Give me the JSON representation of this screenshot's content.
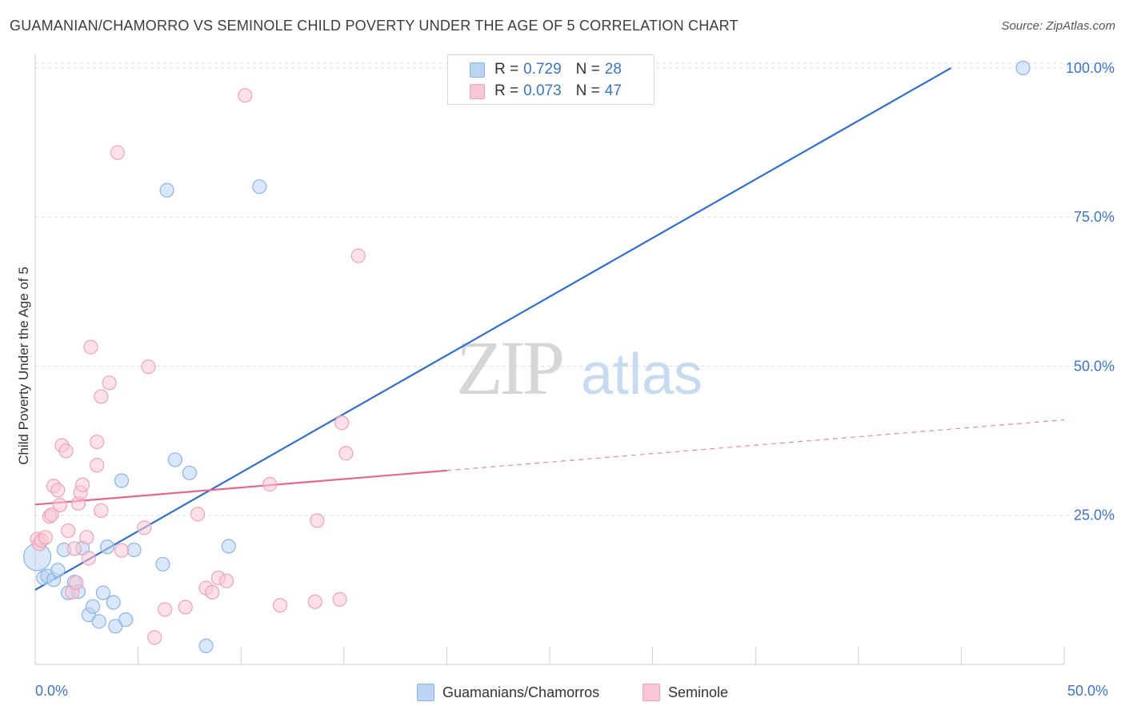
{
  "title": "GUAMANIAN/CHAMORRO VS SEMINOLE CHILD POVERTY UNDER THE AGE OF 5 CORRELATION CHART",
  "source_label": "Source: ZipAtlas.com",
  "watermark": {
    "zip": "ZIP",
    "atlas": "atlas"
  },
  "legend": {
    "rows": [
      {
        "r_label": "R =",
        "r_value": "0.729",
        "n_label": "N =",
        "n_value": "28"
      },
      {
        "r_label": "R =",
        "r_value": "0.073",
        "n_label": "N =",
        "n_value": "47"
      }
    ]
  },
  "chart_data": {
    "type": "scatter",
    "title": "GUAMANIAN/CHAMORRO VS SEMINOLE CHILD POVERTY UNDER THE AGE OF 5 CORRELATION CHART",
    "xlabel": "",
    "ylabel": "Child Poverty Under the Age of 5",
    "xlim": [
      0,
      50
    ],
    "ylim": [
      0,
      102
    ],
    "x_tick_labels": [
      "0.0%",
      "50.0%"
    ],
    "y_ticks": [
      25,
      50,
      75,
      100
    ],
    "y_tick_labels": [
      "25.0%",
      "50.0%",
      "75.0%",
      "100.0%"
    ],
    "grid": true,
    "legend_position": "top-center",
    "series": [
      {
        "name": "Guamanians/Chamorros",
        "color": "#8ab4e8",
        "fill": "#bcd4f4",
        "line_color": "#2f6fcf",
        "trend": {
          "x": [
            0,
            44.5
          ],
          "y": [
            12.5,
            100
          ]
        },
        "points": [
          {
            "x": 0.1,
            "y": 18.0,
            "big": true
          },
          {
            "x": 0.4,
            "y": 14.5
          },
          {
            "x": 0.6,
            "y": 14.8
          },
          {
            "x": 0.9,
            "y": 14.2
          },
          {
            "x": 1.1,
            "y": 15.8
          },
          {
            "x": 1.4,
            "y": 19.2
          },
          {
            "x": 1.6,
            "y": 12.0
          },
          {
            "x": 1.9,
            "y": 13.8
          },
          {
            "x": 2.1,
            "y": 12.2
          },
          {
            "x": 2.3,
            "y": 19.5
          },
          {
            "x": 2.6,
            "y": 8.3
          },
          {
            "x": 2.8,
            "y": 9.7
          },
          {
            "x": 3.1,
            "y": 7.2
          },
          {
            "x": 3.3,
            "y": 12.0
          },
          {
            "x": 3.5,
            "y": 19.7
          },
          {
            "x": 3.8,
            "y": 10.4
          },
          {
            "x": 3.9,
            "y": 6.4
          },
          {
            "x": 4.2,
            "y": 30.8
          },
          {
            "x": 4.4,
            "y": 7.5
          },
          {
            "x": 4.8,
            "y": 19.2
          },
          {
            "x": 6.2,
            "y": 16.8
          },
          {
            "x": 6.4,
            "y": 79.5
          },
          {
            "x": 6.8,
            "y": 34.3
          },
          {
            "x": 7.5,
            "y": 32.1
          },
          {
            "x": 8.3,
            "y": 3.1
          },
          {
            "x": 9.4,
            "y": 19.8
          },
          {
            "x": 10.9,
            "y": 80.1
          },
          {
            "x": 48.0,
            "y": 100.0
          }
        ]
      },
      {
        "name": "Seminole",
        "color": "#f0a0b8",
        "fill": "#f9c8d6",
        "line_color": "#e8668f",
        "trend": {
          "x": [
            0,
            20
          ],
          "y": [
            26.8,
            32.5
          ]
        },
        "trend_dashed": {
          "x": [
            20,
            50
          ],
          "y": [
            32.5,
            41.0
          ]
        },
        "points": [
          {
            "x": 0.1,
            "y": 21.0
          },
          {
            "x": 0.2,
            "y": 20.2
          },
          {
            "x": 0.3,
            "y": 20.8
          },
          {
            "x": 0.5,
            "y": 21.3
          },
          {
            "x": 0.7,
            "y": 24.8
          },
          {
            "x": 0.8,
            "y": 25.1
          },
          {
            "x": 0.9,
            "y": 29.9
          },
          {
            "x": 1.1,
            "y": 29.2
          },
          {
            "x": 1.2,
            "y": 26.7
          },
          {
            "x": 1.3,
            "y": 36.7
          },
          {
            "x": 1.5,
            "y": 35.8
          },
          {
            "x": 1.6,
            "y": 22.4
          },
          {
            "x": 1.8,
            "y": 12.1
          },
          {
            "x": 1.9,
            "y": 19.4
          },
          {
            "x": 2.0,
            "y": 13.7
          },
          {
            "x": 2.1,
            "y": 27.0
          },
          {
            "x": 2.2,
            "y": 28.8
          },
          {
            "x": 2.3,
            "y": 30.1
          },
          {
            "x": 2.5,
            "y": 21.3
          },
          {
            "x": 2.6,
            "y": 17.8
          },
          {
            "x": 2.7,
            "y": 53.2
          },
          {
            "x": 3.0,
            "y": 37.3
          },
          {
            "x": 3.0,
            "y": 33.4
          },
          {
            "x": 3.2,
            "y": 25.8
          },
          {
            "x": 3.2,
            "y": 44.9
          },
          {
            "x": 3.6,
            "y": 47.2
          },
          {
            "x": 4.0,
            "y": 85.8
          },
          {
            "x": 4.2,
            "y": 19.1
          },
          {
            "x": 5.3,
            "y": 22.9
          },
          {
            "x": 5.5,
            "y": 49.9
          },
          {
            "x": 5.8,
            "y": 4.5
          },
          {
            "x": 6.3,
            "y": 9.2
          },
          {
            "x": 7.3,
            "y": 9.6
          },
          {
            "x": 7.9,
            "y": 25.2
          },
          {
            "x": 8.3,
            "y": 12.8
          },
          {
            "x": 8.6,
            "y": 12.1
          },
          {
            "x": 8.9,
            "y": 14.5
          },
          {
            "x": 9.3,
            "y": 14.0
          },
          {
            "x": 10.2,
            "y": 95.4
          },
          {
            "x": 11.4,
            "y": 30.2
          },
          {
            "x": 11.9,
            "y": 9.9
          },
          {
            "x": 13.7,
            "y": 24.1
          },
          {
            "x": 13.6,
            "y": 10.5
          },
          {
            "x": 14.8,
            "y": 10.9
          },
          {
            "x": 14.9,
            "y": 40.5
          },
          {
            "x": 15.1,
            "y": 35.4
          },
          {
            "x": 15.7,
            "y": 68.5
          }
        ]
      }
    ]
  }
}
